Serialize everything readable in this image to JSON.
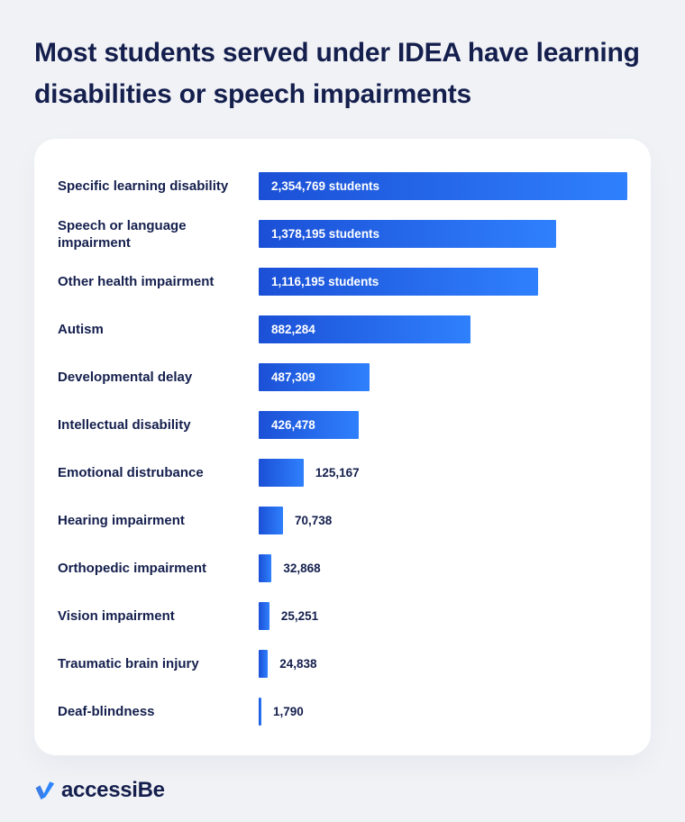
{
  "page": {
    "background_color": "#f1f2f6",
    "card_color": "#ffffff",
    "text_color": "#141f4d"
  },
  "chart_data": {
    "type": "bar",
    "orientation": "horizontal",
    "title": "Most students served under IDEA have learning disabilities or speech impairments",
    "unit": "students",
    "grid": false,
    "legend": "none",
    "bar_gradient": [
      "#1b50d6",
      "#2f80fd"
    ],
    "value_range": [
      0,
      2354769
    ],
    "categories": [
      "Specific learning disability",
      "Speech or language impairment",
      "Other health impairment",
      "Autism",
      "Developmental delay",
      "Intellectual disability",
      "Emotional distrubance",
      "Hearing impairment",
      "Orthopedic impairment",
      "Vision impairment",
      "Traumatic brain injury",
      "Deaf-blindness"
    ],
    "values": [
      2354769,
      1378195,
      1116195,
      882284,
      487309,
      426478,
      125167,
      70738,
      32868,
      25251,
      24838,
      1790
    ],
    "rows": [
      {
        "label": "Specific learning disability",
        "value": 2354769,
        "value_label": "2,354,769 students",
        "value_position": "inside",
        "width_pct": 100
      },
      {
        "label": "Speech or language impairment",
        "value": 1378195,
        "value_label": "1,378,195 students",
        "value_position": "inside",
        "width_pct": 80.7
      },
      {
        "label": "Other health impairment",
        "value": 1116195,
        "value_label": "1,116,195 students",
        "value_position": "inside",
        "width_pct": 75.8
      },
      {
        "label": "Autism",
        "value": 882284,
        "value_label": "882,284",
        "value_position": "inside",
        "width_pct": 57.5
      },
      {
        "label": "Developmental delay",
        "value": 487309,
        "value_label": "487,309",
        "value_position": "inside",
        "width_pct": 30.1
      },
      {
        "label": "Intellectual disability",
        "value": 426478,
        "value_label": "426,478",
        "value_position": "inside",
        "width_pct": 27.2
      },
      {
        "label": "Emotional distrubance",
        "value": 125167,
        "value_label": "125,167",
        "value_position": "outside",
        "width_pct": 12.2
      },
      {
        "label": "Hearing impairment",
        "value": 70738,
        "value_label": "70,738",
        "value_position": "outside",
        "width_pct": 6.6
      },
      {
        "label": "Orthopedic impairment",
        "value": 32868,
        "value_label": "32,868",
        "value_position": "outside",
        "width_pct": 3.5
      },
      {
        "label": "Vision impairment",
        "value": 25251,
        "value_label": "25,251",
        "value_position": "outside",
        "width_pct": 2.9
      },
      {
        "label": "Traumatic brain injury",
        "value": 24838,
        "value_label": "24,838",
        "value_position": "outside",
        "width_pct": 2.5
      },
      {
        "label": "Deaf-blindness",
        "value": 1790,
        "value_label": "1,790",
        "value_position": "outside",
        "width_pct": 0.7
      }
    ]
  },
  "footer": {
    "logo_text": "accessiBe",
    "logo_icon": "checkmark-icon",
    "logo_icon_colors": [
      "#3a7de8",
      "#2e86ff"
    ]
  }
}
